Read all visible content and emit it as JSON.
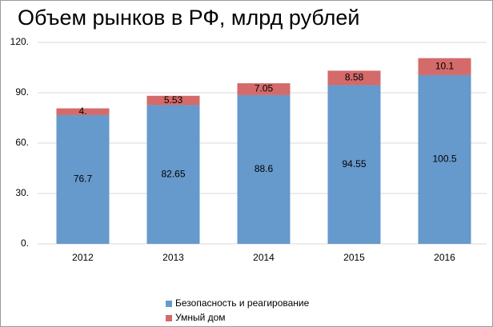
{
  "chart_data": {
    "type": "stacked-bar",
    "title": "Объем рынков в РФ, млрд рублей",
    "categories": [
      "2012",
      "2013",
      "2014",
      "2015",
      "2016"
    ],
    "series": [
      {
        "name": "Безопасность и реагирование",
        "color": "#6699cc",
        "values": [
          76.7,
          82.65,
          88.6,
          94.55,
          100.5
        ]
      },
      {
        "name": "Умный дом",
        "color": "#d46a6a",
        "values": [
          4,
          5.53,
          7.05,
          8.58,
          10.1
        ],
        "value_labels": [
          "4.",
          "5.53",
          "7.05",
          "8.58",
          "10.1"
        ]
      }
    ],
    "ylim": [
      0,
      120
    ],
    "yticks": [
      {
        "value": 0,
        "label": "0."
      },
      {
        "value": 30,
        "label": "30."
      },
      {
        "value": 60,
        "label": "60."
      },
      {
        "value": 90,
        "label": "90."
      },
      {
        "value": 120,
        "label": "120."
      }
    ],
    "grid": true,
    "legend": "bottom"
  }
}
